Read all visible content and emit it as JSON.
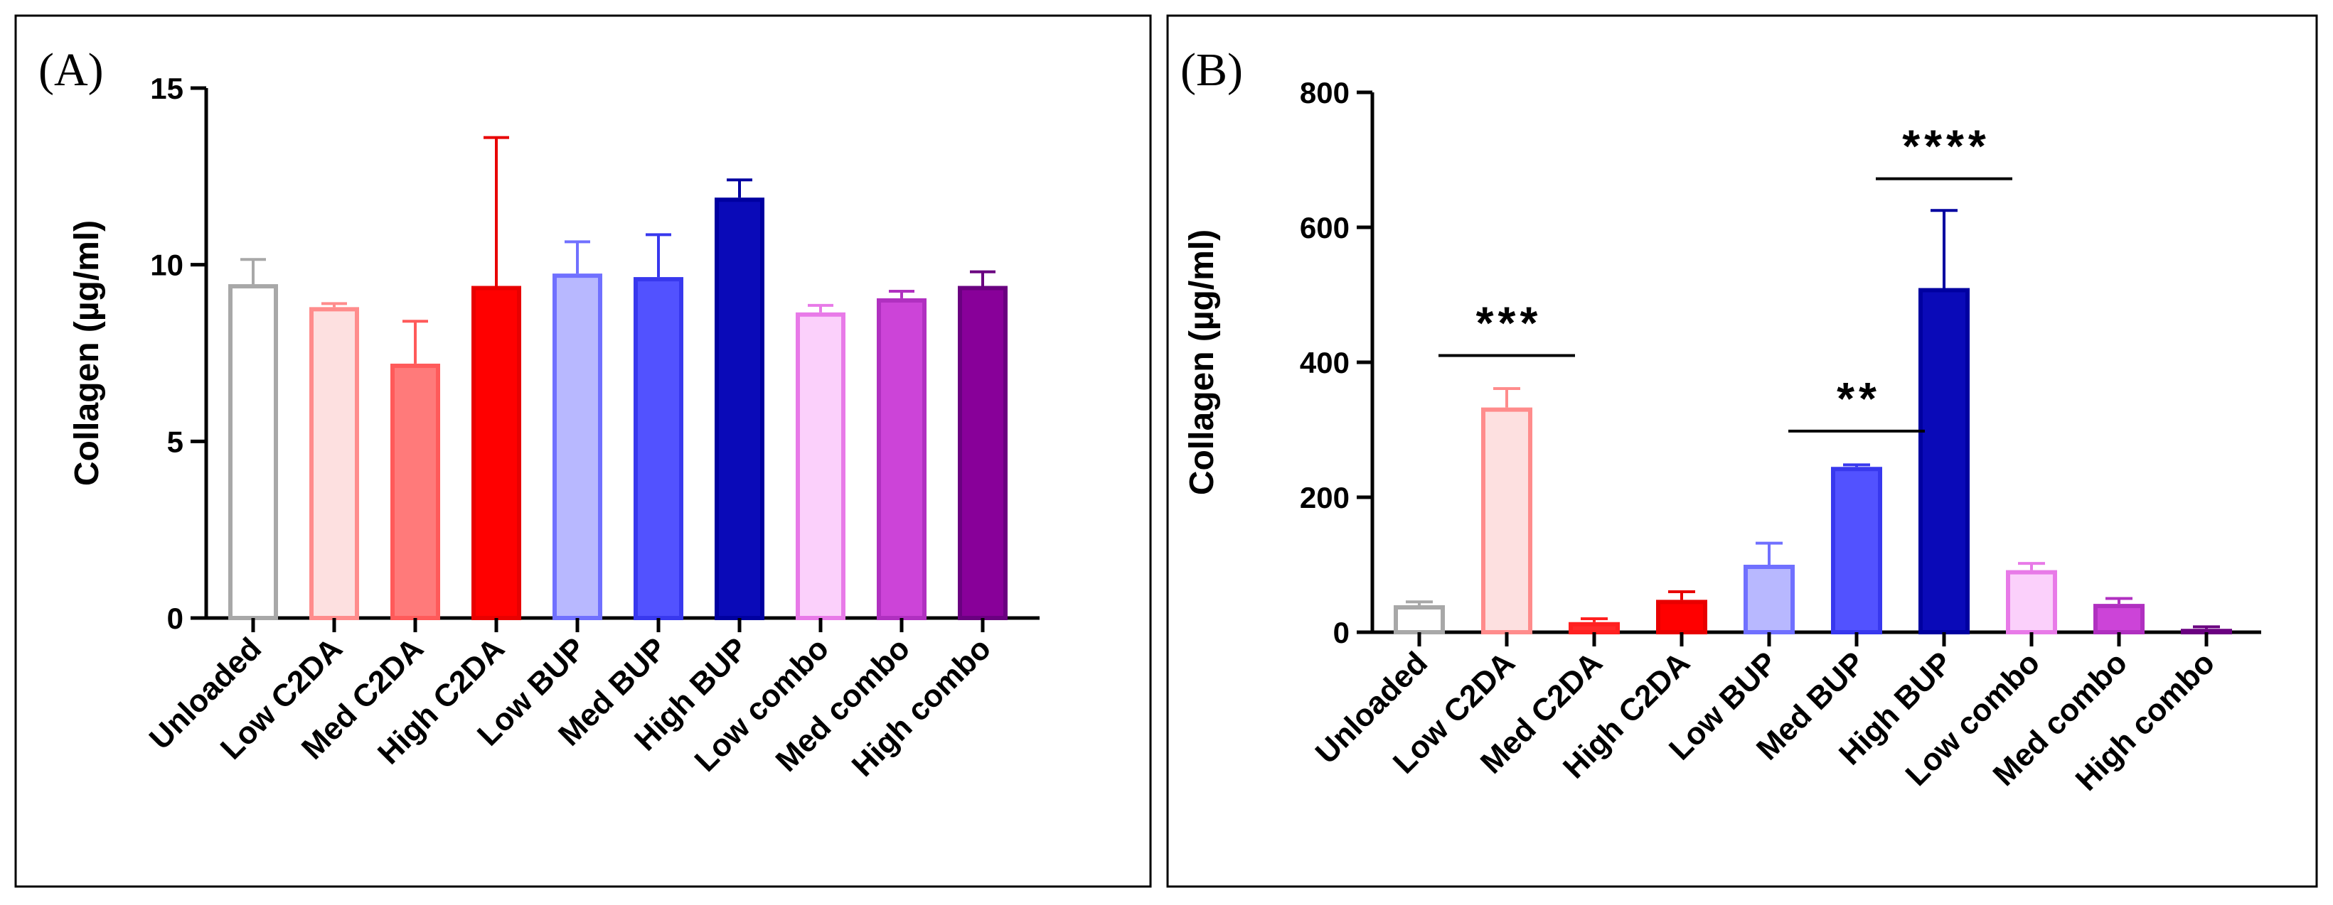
{
  "chart_data": [
    {
      "type": "bar",
      "panel_label": "(A)",
      "ylabel": "Collagen (µg/ml)",
      "xlabel": "",
      "ylim": [
        0,
        15
      ],
      "yticks": [
        0,
        5,
        10,
        15
      ],
      "ytick_labels": [
        "0",
        "5",
        "10",
        "15"
      ],
      "categories": [
        "Unloaded",
        "Low C2DA",
        "Med C2DA",
        "High C2DA",
        "Low BUP",
        "Med BUP",
        "High BUP",
        "Low combo",
        "Med combo",
        "High combo"
      ],
      "values": [
        9.45,
        8.8,
        7.2,
        9.4,
        9.75,
        9.65,
        11.9,
        8.65,
        9.05,
        9.4
      ],
      "errors": [
        0.7,
        0.1,
        1.2,
        4.2,
        0.9,
        1.2,
        0.5,
        0.2,
        0.2,
        0.4
      ],
      "colors": {
        "fill": [
          "#ffffff",
          "#fde0e0",
          "#ff7a7a",
          "#ff0000",
          "#b8b8ff",
          "#5252ff",
          "#0a0ab8",
          "#fbd0fb",
          "#cc44d8",
          "#880099"
        ],
        "stroke": [
          "#a8a8a8",
          "#ff8c8c",
          "#ff5a5a",
          "#e80000",
          "#7070ff",
          "#3838ee",
          "#0000a0",
          "#e87ae8",
          "#b030c0",
          "#6a0080"
        ]
      },
      "significance": []
    },
    {
      "type": "bar",
      "panel_label": "(B)",
      "ylabel": "Collagen (µg/ml)",
      "xlabel": "",
      "ylim": [
        0,
        800
      ],
      "yticks": [
        0,
        200,
        400,
        600,
        800
      ],
      "ytick_labels": [
        "0",
        "200",
        "400",
        "600",
        "800"
      ],
      "categories": [
        "Unloaded",
        "Low C2DA",
        "Med C2DA",
        "High C2DA",
        "Low BUP",
        "Med BUP",
        "High BUP",
        "Low combo",
        "Med combo",
        "High combo"
      ],
      "values": [
        40,
        333,
        15,
        48,
        100,
        245,
        510,
        92,
        42,
        5
      ],
      "errors": [
        5,
        28,
        5,
        12,
        32,
        3,
        115,
        10,
        8,
        3
      ],
      "colors": {
        "fill": [
          "#ffffff",
          "#fde0e0",
          "#ff2a2a",
          "#ff0000",
          "#b8b8ff",
          "#5252ff",
          "#0a0ab8",
          "#fbd0fb",
          "#cc44d8",
          "#880099"
        ],
        "stroke": [
          "#a8a8a8",
          "#ff8c8c",
          "#ff2020",
          "#e80000",
          "#7070ff",
          "#3838ee",
          "#0000a0",
          "#e87ae8",
          "#b030c0",
          "#6a0080"
        ]
      },
      "significance": [
        {
          "label": "***",
          "bar_index": 1,
          "y_level": 410
        },
        {
          "label": "**",
          "bar_index": 5,
          "y_level": 298
        },
        {
          "label": "****",
          "bar_index": 6,
          "y_level": 672
        }
      ]
    }
  ]
}
